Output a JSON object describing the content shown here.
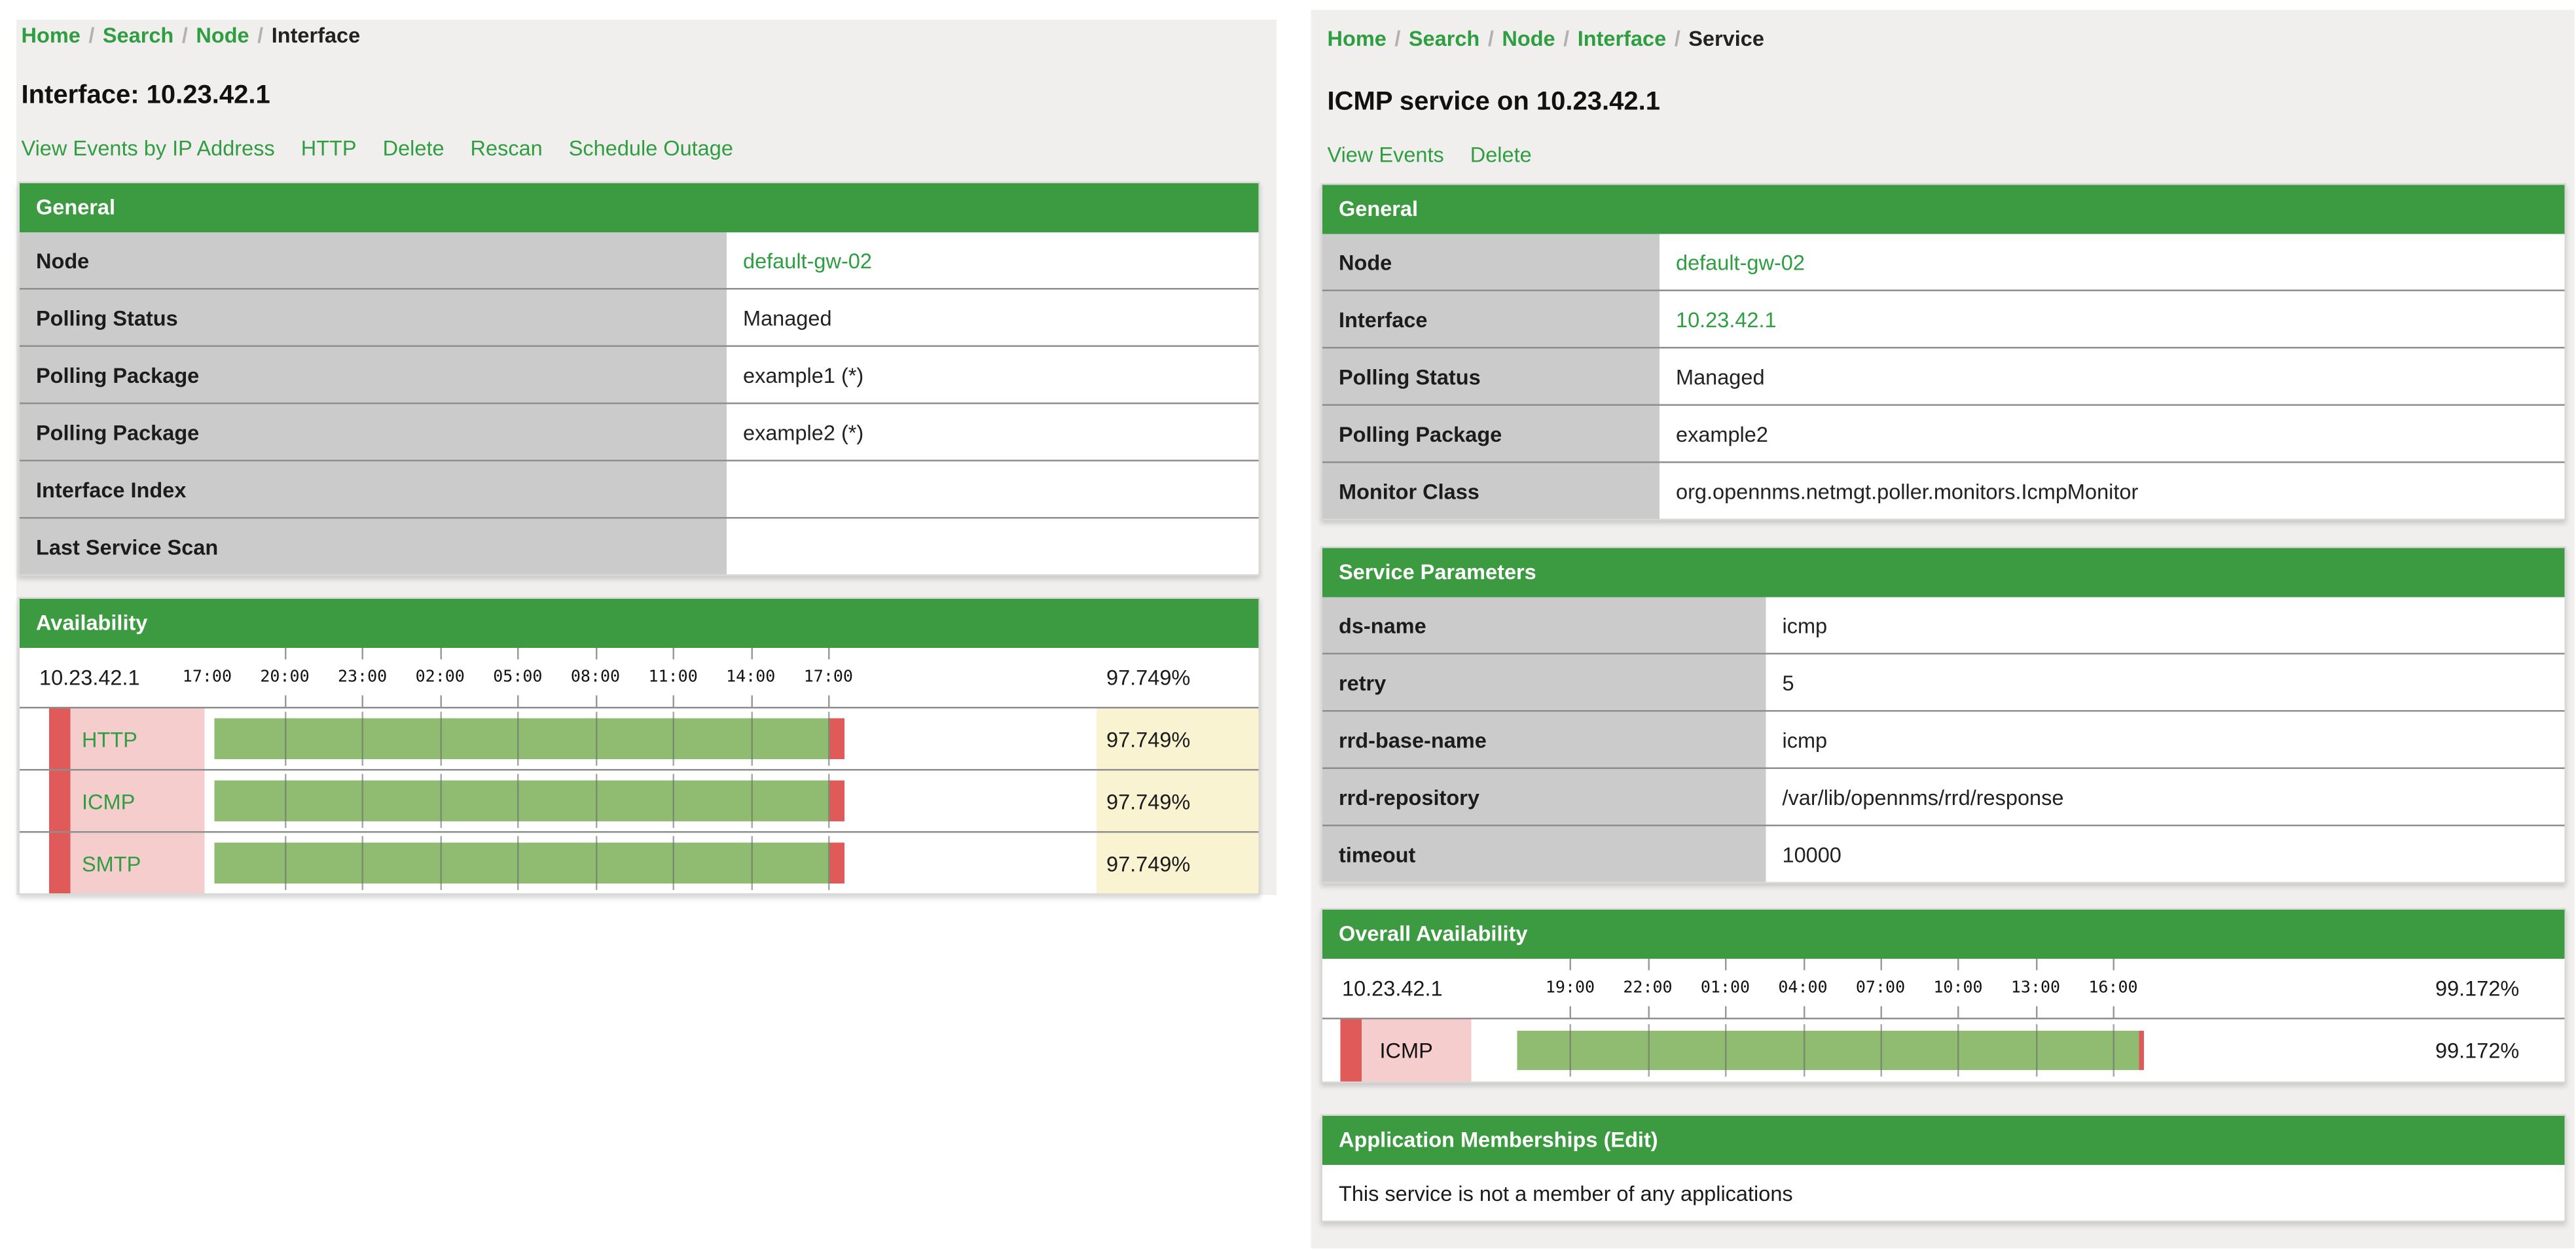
{
  "colors": {
    "section_header_green": "#3c9b40",
    "link_green": "#2f9e41",
    "label_cell_gray": "#cbcbcb",
    "availability_bar_green": "#8fbc70",
    "outage_red": "#e05a5a",
    "service_label_pink": "#f5cdcd",
    "percent_cell_yellow": "#faf3d2",
    "page_background": "#f0efee"
  },
  "left_page": {
    "breadcrumb": [
      {
        "label": "Home",
        "current": false
      },
      {
        "label": "Search",
        "current": false
      },
      {
        "label": "Node",
        "current": false
      },
      {
        "label": "Interface",
        "current": true
      }
    ],
    "title": "Interface: 10.23.42.1",
    "actions": [
      "View Events by IP Address",
      "HTTP",
      "Delete",
      "Rescan",
      "Schedule Outage"
    ],
    "general": {
      "title": "General",
      "rows": [
        {
          "label": "Node",
          "value": "default-gw-02",
          "is_link": true
        },
        {
          "label": "Polling Status",
          "value": "Managed",
          "is_link": false
        },
        {
          "label": "Polling Package",
          "value": "example1 (*)",
          "is_link": false
        },
        {
          "label": "Polling Package",
          "value": "example2 (*)",
          "is_link": false
        },
        {
          "label": "Interface Index",
          "value": "",
          "is_link": false
        },
        {
          "label": "Last Service Scan",
          "value": "",
          "is_link": false
        }
      ]
    },
    "availability": {
      "title": "Availability",
      "ip": "10.23.42.1",
      "overall_percent": "97.749%",
      "axis_labels": [
        "17:00",
        "20:00",
        "23:00",
        "02:00",
        "05:00",
        "08:00",
        "11:00",
        "14:00",
        "17:00"
      ],
      "services": [
        {
          "name": "HTTP",
          "percent": "97.749%",
          "value": 97.749,
          "is_link": true
        },
        {
          "name": "ICMP",
          "percent": "97.749%",
          "value": 97.749,
          "is_link": true
        },
        {
          "name": "SMTP",
          "percent": "97.749%",
          "value": 97.749,
          "is_link": true
        }
      ]
    }
  },
  "right_page": {
    "breadcrumb": [
      {
        "label": "Home",
        "current": false
      },
      {
        "label": "Search",
        "current": false
      },
      {
        "label": "Node",
        "current": false
      },
      {
        "label": "Interface",
        "current": false
      },
      {
        "label": "Service",
        "current": true
      }
    ],
    "title": "ICMP service on 10.23.42.1",
    "actions": [
      "View Events",
      "Delete"
    ],
    "general": {
      "title": "General",
      "rows": [
        {
          "label": "Node",
          "value": "default-gw-02",
          "is_link": true
        },
        {
          "label": "Interface",
          "value": "10.23.42.1",
          "is_link": true
        },
        {
          "label": "Polling Status",
          "value": "Managed",
          "is_link": false
        },
        {
          "label": "Polling Package",
          "value": "example2",
          "is_link": false
        },
        {
          "label": "Monitor Class",
          "value": "org.opennms.netmgt.poller.monitors.IcmpMonitor",
          "is_link": false
        }
      ]
    },
    "service_parameters": {
      "title": "Service Parameters",
      "rows": [
        {
          "label": "ds-name",
          "value": "icmp",
          "is_link": false
        },
        {
          "label": "retry",
          "value": "5",
          "is_link": false
        },
        {
          "label": "rrd-base-name",
          "value": "icmp",
          "is_link": false
        },
        {
          "label": "rrd-repository",
          "value": "/var/lib/opennms/rrd/response",
          "is_link": false
        },
        {
          "label": "timeout",
          "value": "10000",
          "is_link": false
        }
      ]
    },
    "overall_availability": {
      "title": "Overall Availability",
      "ip": "10.23.42.1",
      "overall_percent": "99.172%",
      "axis_labels": [
        "19:00",
        "22:00",
        "01:00",
        "04:00",
        "07:00",
        "10:00",
        "13:00",
        "16:00"
      ],
      "services": [
        {
          "name": "ICMP",
          "percent": "99.172%",
          "value": 99.172,
          "is_link": false
        }
      ]
    },
    "applications": {
      "title": "Application Memberships",
      "edit_label": "(Edit)",
      "empty_text": "This service is not a member of any applications"
    }
  }
}
